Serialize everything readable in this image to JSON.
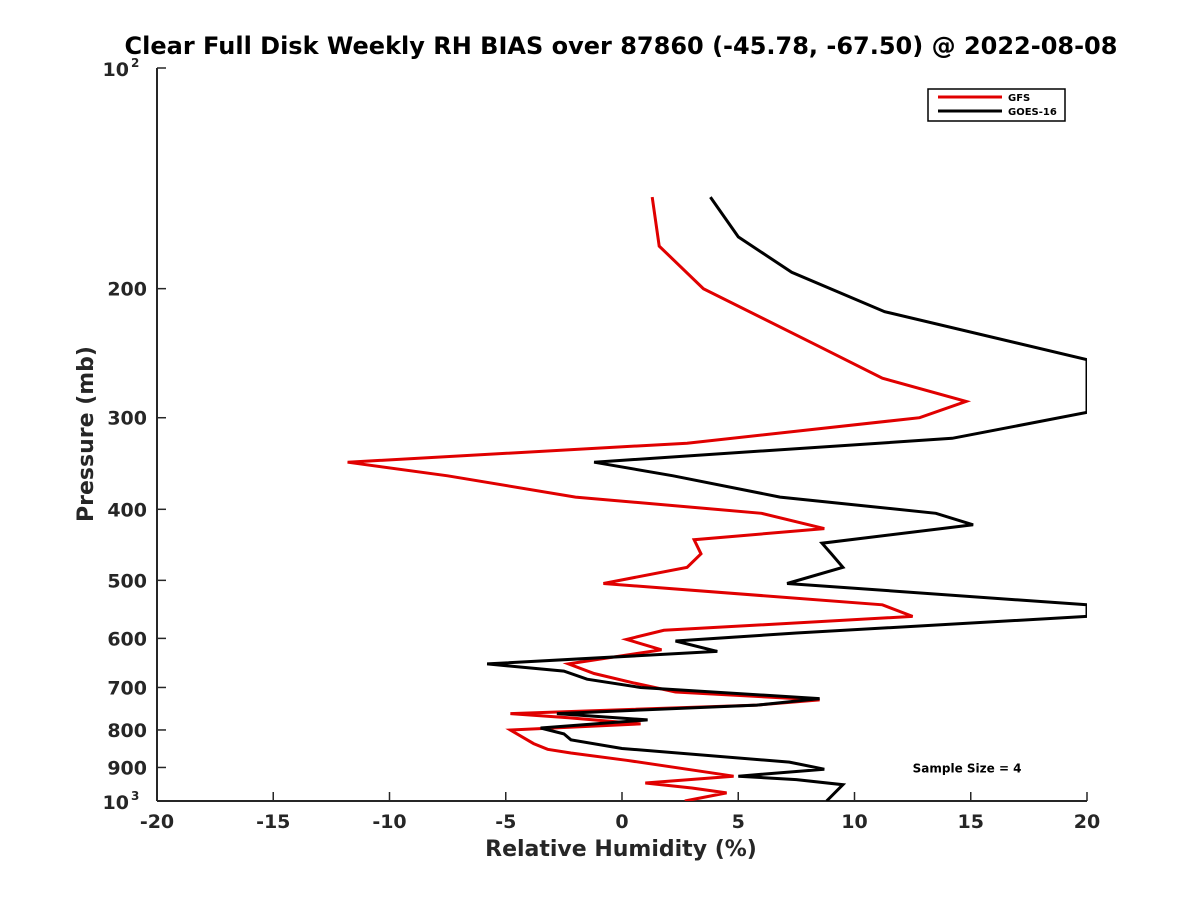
{
  "chart_data": {
    "type": "line",
    "title": "Clear Full Disk Weekly RH BIAS over 87860 (-45.78, -67.50) @ 2022-08-08",
    "xlabel": "Relative Humidity (%)",
    "ylabel": "Pressure (mb)",
    "xlim": [
      -20,
      20
    ],
    "ylim": [
      100,
      1000
    ],
    "y_scale": "log",
    "y_reversed": true,
    "x_ticks": [
      -20,
      -15,
      -10,
      -5,
      0,
      5,
      10,
      15,
      20
    ],
    "y_ticks": [
      {
        "value": 100,
        "base": "10",
        "exp": "2"
      },
      {
        "value": 200,
        "label": "200"
      },
      {
        "value": 300,
        "label": "300"
      },
      {
        "value": 400,
        "label": "400"
      },
      {
        "value": 500,
        "label": "500"
      },
      {
        "value": 600,
        "label": "600"
      },
      {
        "value": 700,
        "label": "700"
      },
      {
        "value": 800,
        "label": "800"
      },
      {
        "value": 900,
        "label": "900"
      },
      {
        "value": 1000,
        "base": "10",
        "exp": "3"
      }
    ],
    "legend_position": "top-right",
    "series": [
      {
        "name": "GFS",
        "color": "#e00000",
        "points": [
          [
            1.3,
            150
          ],
          [
            1.6,
            175
          ],
          [
            3.5,
            200
          ],
          [
            8.5,
            240
          ],
          [
            11.2,
            265
          ],
          [
            14.8,
            285
          ],
          [
            12.8,
            300
          ],
          [
            2.8,
            325
          ],
          [
            -11.8,
            345
          ],
          [
            -7.5,
            360
          ],
          [
            -2,
            385
          ],
          [
            6,
            405
          ],
          [
            8.7,
            425
          ],
          [
            3.1,
            440
          ],
          [
            3.4,
            460
          ],
          [
            2.8,
            480
          ],
          [
            -0.8,
            505
          ],
          [
            11.2,
            540
          ],
          [
            12.5,
            560
          ],
          [
            1.8,
            585
          ],
          [
            0.2,
            602
          ],
          [
            1.7,
            622
          ],
          [
            -2.3,
            650
          ],
          [
            -1.2,
            670
          ],
          [
            0.5,
            690
          ],
          [
            2.3,
            710
          ],
          [
            8.5,
            728
          ],
          [
            5.8,
            740
          ],
          [
            -4.8,
            760
          ],
          [
            -2.3,
            770
          ],
          [
            0.8,
            785
          ],
          [
            -4.8,
            800
          ],
          [
            -3.8,
            835
          ],
          [
            -3.2,
            850
          ],
          [
            -2.2,
            860
          ],
          [
            0.2,
            880
          ],
          [
            3.8,
            915
          ],
          [
            4.8,
            925
          ],
          [
            1,
            945
          ],
          [
            3,
            960
          ],
          [
            4.5,
            975
          ],
          [
            2.7,
            1000
          ]
        ]
      },
      {
        "name": "GOES-16",
        "color": "#000000",
        "points": [
          [
            3.8,
            150
          ],
          [
            5,
            170
          ],
          [
            7.3,
            190
          ],
          [
            11.3,
            215
          ],
          [
            20,
            250
          ],
          [
            20,
            295
          ],
          [
            14.2,
            320
          ],
          [
            -1.2,
            345
          ],
          [
            2.2,
            360
          ],
          [
            6.8,
            385
          ],
          [
            13.5,
            405
          ],
          [
            15.1,
            420
          ],
          [
            8.6,
            445
          ],
          [
            9,
            460
          ],
          [
            9.5,
            480
          ],
          [
            7.1,
            505
          ],
          [
            20,
            540
          ],
          [
            20,
            560
          ],
          [
            7.5,
            590
          ],
          [
            2.3,
            605
          ],
          [
            4.1,
            625
          ],
          [
            -5.8,
            650
          ],
          [
            -2.5,
            665
          ],
          [
            -1.5,
            682
          ],
          [
            0.8,
            700
          ],
          [
            8.5,
            725
          ],
          [
            5.8,
            740
          ],
          [
            -2.8,
            760
          ],
          [
            1.1,
            775
          ],
          [
            -3.5,
            795
          ],
          [
            -2.5,
            810
          ],
          [
            -2.2,
            825
          ],
          [
            0,
            848
          ],
          [
            7.2,
            885
          ],
          [
            8.7,
            905
          ],
          [
            5,
            925
          ],
          [
            7.5,
            935
          ],
          [
            9.5,
            950
          ],
          [
            8.8,
            1000
          ]
        ]
      }
    ],
    "annotations": [
      {
        "text": "Sample Size = 4",
        "x": 12.5,
        "y": 900
      }
    ]
  }
}
